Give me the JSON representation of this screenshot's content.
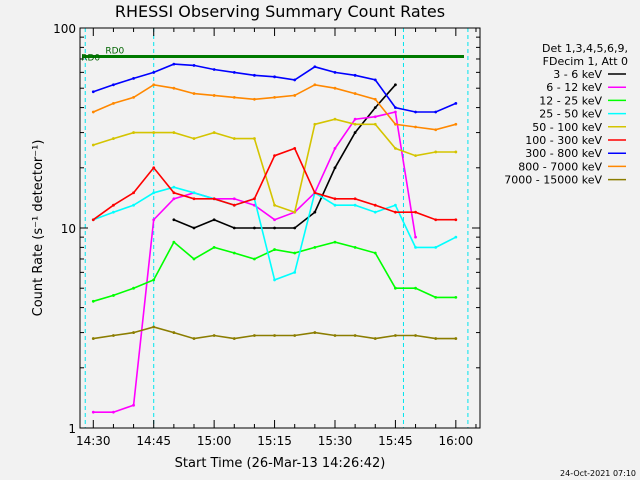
{
  "chart_data": {
    "type": "line",
    "title": "RHESSI Observing Summary Count Rates",
    "xlabel": "Start Time (26-Mar-13 14:26:42)",
    "ylabel": "Count Rate (s⁻¹ detector⁻¹)",
    "y_scale": "log",
    "ylim": [
      1,
      100
    ],
    "xlim": [
      "14:26:42",
      "16:06:00"
    ],
    "x_ticks": [
      "14:30",
      "14:45",
      "15:00",
      "15:15",
      "15:30",
      "15:45",
      "16:00"
    ],
    "y_ticks": [
      "1",
      "10",
      "100"
    ],
    "legend_header": [
      "Det 1,3,4,5,6,9,",
      "FDecim 1, Att 0"
    ],
    "legend_position": "right",
    "timestamp": "24-Oct-2021 07:10",
    "annotations": [
      {
        "text": "RD0",
        "x": "14:27",
        "y": 72
      },
      {
        "text": "RD0",
        "x": "14:33",
        "y": 78
      }
    ],
    "vertical_markers": [
      "14:28",
      "14:45",
      "15:47",
      "16:03"
    ],
    "series": [
      {
        "name": "3 - 6 keV",
        "color": "#000000",
        "x": [
          "14:30",
          "14:35",
          "14:40",
          "14:45",
          "14:50",
          "14:55",
          "15:00",
          "15:05",
          "15:10",
          "15:15",
          "15:20",
          "15:25",
          "15:30",
          "15:35",
          "15:40",
          "15:45",
          "15:50",
          "15:55",
          "16:00"
        ],
        "y": [
          null,
          null,
          null,
          null,
          11,
          10,
          11,
          10,
          10,
          10,
          10,
          12,
          20,
          30,
          40,
          52,
          null,
          null,
          null
        ]
      },
      {
        "name": "6 - 12 keV",
        "color": "#ff00ff",
        "x": [
          "14:30",
          "14:35",
          "14:40",
          "14:45",
          "14:50",
          "14:55",
          "15:00",
          "15:05",
          "15:10",
          "15:15",
          "15:20",
          "15:25",
          "15:30",
          "15:35",
          "15:40",
          "15:45",
          "15:50",
          "15:55",
          "16:00"
        ],
        "y": [
          1.2,
          1.2,
          1.3,
          11,
          14,
          15,
          14,
          14,
          13,
          11,
          12,
          15,
          25,
          35,
          36,
          38,
          9,
          null,
          null
        ]
      },
      {
        "name": "12 - 25 keV",
        "color": "#00ff00",
        "x": [
          "14:30",
          "14:35",
          "14:40",
          "14:45",
          "14:50",
          "14:55",
          "15:00",
          "15:05",
          "15:10",
          "15:15",
          "15:20",
          "15:25",
          "15:30",
          "15:35",
          "15:40",
          "15:45",
          "15:50",
          "15:55",
          "16:00"
        ],
        "y": [
          4.3,
          4.6,
          5,
          5.5,
          8.5,
          7,
          8,
          7.5,
          7,
          7.8,
          7.5,
          8,
          8.5,
          8,
          7.5,
          5,
          5,
          4.5,
          4.5
        ]
      },
      {
        "name": "25 - 50 keV",
        "color": "#00ffff",
        "x": [
          "14:30",
          "14:35",
          "14:40",
          "14:45",
          "14:50",
          "14:55",
          "15:00",
          "15:05",
          "15:10",
          "15:15",
          "15:20",
          "15:25",
          "15:30",
          "15:35",
          "15:40",
          "15:45",
          "15:50",
          "15:55",
          "16:00"
        ],
        "y": [
          11,
          12,
          13,
          15,
          16,
          15,
          14,
          13,
          14,
          5.5,
          6,
          15,
          13,
          13,
          12,
          13,
          8,
          8,
          9
        ]
      },
      {
        "name": "50 - 100 keV",
        "color": "#d4c400",
        "x": [
          "14:30",
          "14:35",
          "14:40",
          "14:45",
          "14:50",
          "14:55",
          "15:00",
          "15:05",
          "15:10",
          "15:15",
          "15:20",
          "15:25",
          "15:30",
          "15:35",
          "15:40",
          "15:45",
          "15:50",
          "15:55",
          "16:00"
        ],
        "y": [
          26,
          28,
          30,
          30,
          30,
          28,
          30,
          28,
          28,
          13,
          12,
          33,
          35,
          33,
          33,
          25,
          23,
          24,
          24
        ]
      },
      {
        "name": "100 - 300 keV",
        "color": "#ff0000",
        "x": [
          "14:30",
          "14:35",
          "14:40",
          "14:45",
          "14:50",
          "14:55",
          "15:00",
          "15:05",
          "15:10",
          "15:15",
          "15:20",
          "15:25",
          "15:30",
          "15:35",
          "15:40",
          "15:45",
          "15:50",
          "15:55",
          "16:00"
        ],
        "y": [
          11,
          13,
          15,
          20,
          15,
          14,
          14,
          13,
          14,
          23,
          25,
          15,
          14,
          14,
          13,
          12,
          12,
          11,
          11
        ]
      },
      {
        "name": "300 - 800 keV",
        "color": "#0000ff",
        "x": [
          "14:30",
          "14:35",
          "14:40",
          "14:45",
          "14:50",
          "14:55",
          "15:00",
          "15:05",
          "15:10",
          "15:15",
          "15:20",
          "15:25",
          "15:30",
          "15:35",
          "15:40",
          "15:45",
          "15:50",
          "15:55",
          "16:00"
        ],
        "y": [
          48,
          52,
          56,
          60,
          66,
          65,
          62,
          60,
          58,
          57,
          55,
          64,
          60,
          58,
          55,
          40,
          38,
          38,
          42
        ]
      },
      {
        "name": "800 - 7000 keV",
        "color": "#ff8800",
        "x": [
          "14:30",
          "14:35",
          "14:40",
          "14:45",
          "14:50",
          "14:55",
          "15:00",
          "15:05",
          "15:10",
          "15:15",
          "15:20",
          "15:25",
          "15:30",
          "15:35",
          "15:40",
          "15:45",
          "15:50",
          "15:55",
          "16:00"
        ],
        "y": [
          38,
          42,
          45,
          52,
          50,
          47,
          46,
          45,
          44,
          45,
          46,
          52,
          50,
          47,
          44,
          33,
          32,
          31,
          33
        ]
      },
      {
        "name": "7000 - 15000 keV",
        "color": "#8b7d00",
        "x": [
          "14:30",
          "14:35",
          "14:40",
          "14:45",
          "14:50",
          "14:55",
          "15:00",
          "15:05",
          "15:10",
          "15:15",
          "15:20",
          "15:25",
          "15:30",
          "15:35",
          "15:40",
          "15:45",
          "15:50",
          "15:55",
          "16:00"
        ],
        "y": [
          2.8,
          2.9,
          3,
          3.2,
          3,
          2.8,
          2.9,
          2.8,
          2.9,
          2.9,
          2.9,
          3,
          2.9,
          2.9,
          2.8,
          2.9,
          2.9,
          2.8,
          2.8
        ]
      }
    ]
  }
}
